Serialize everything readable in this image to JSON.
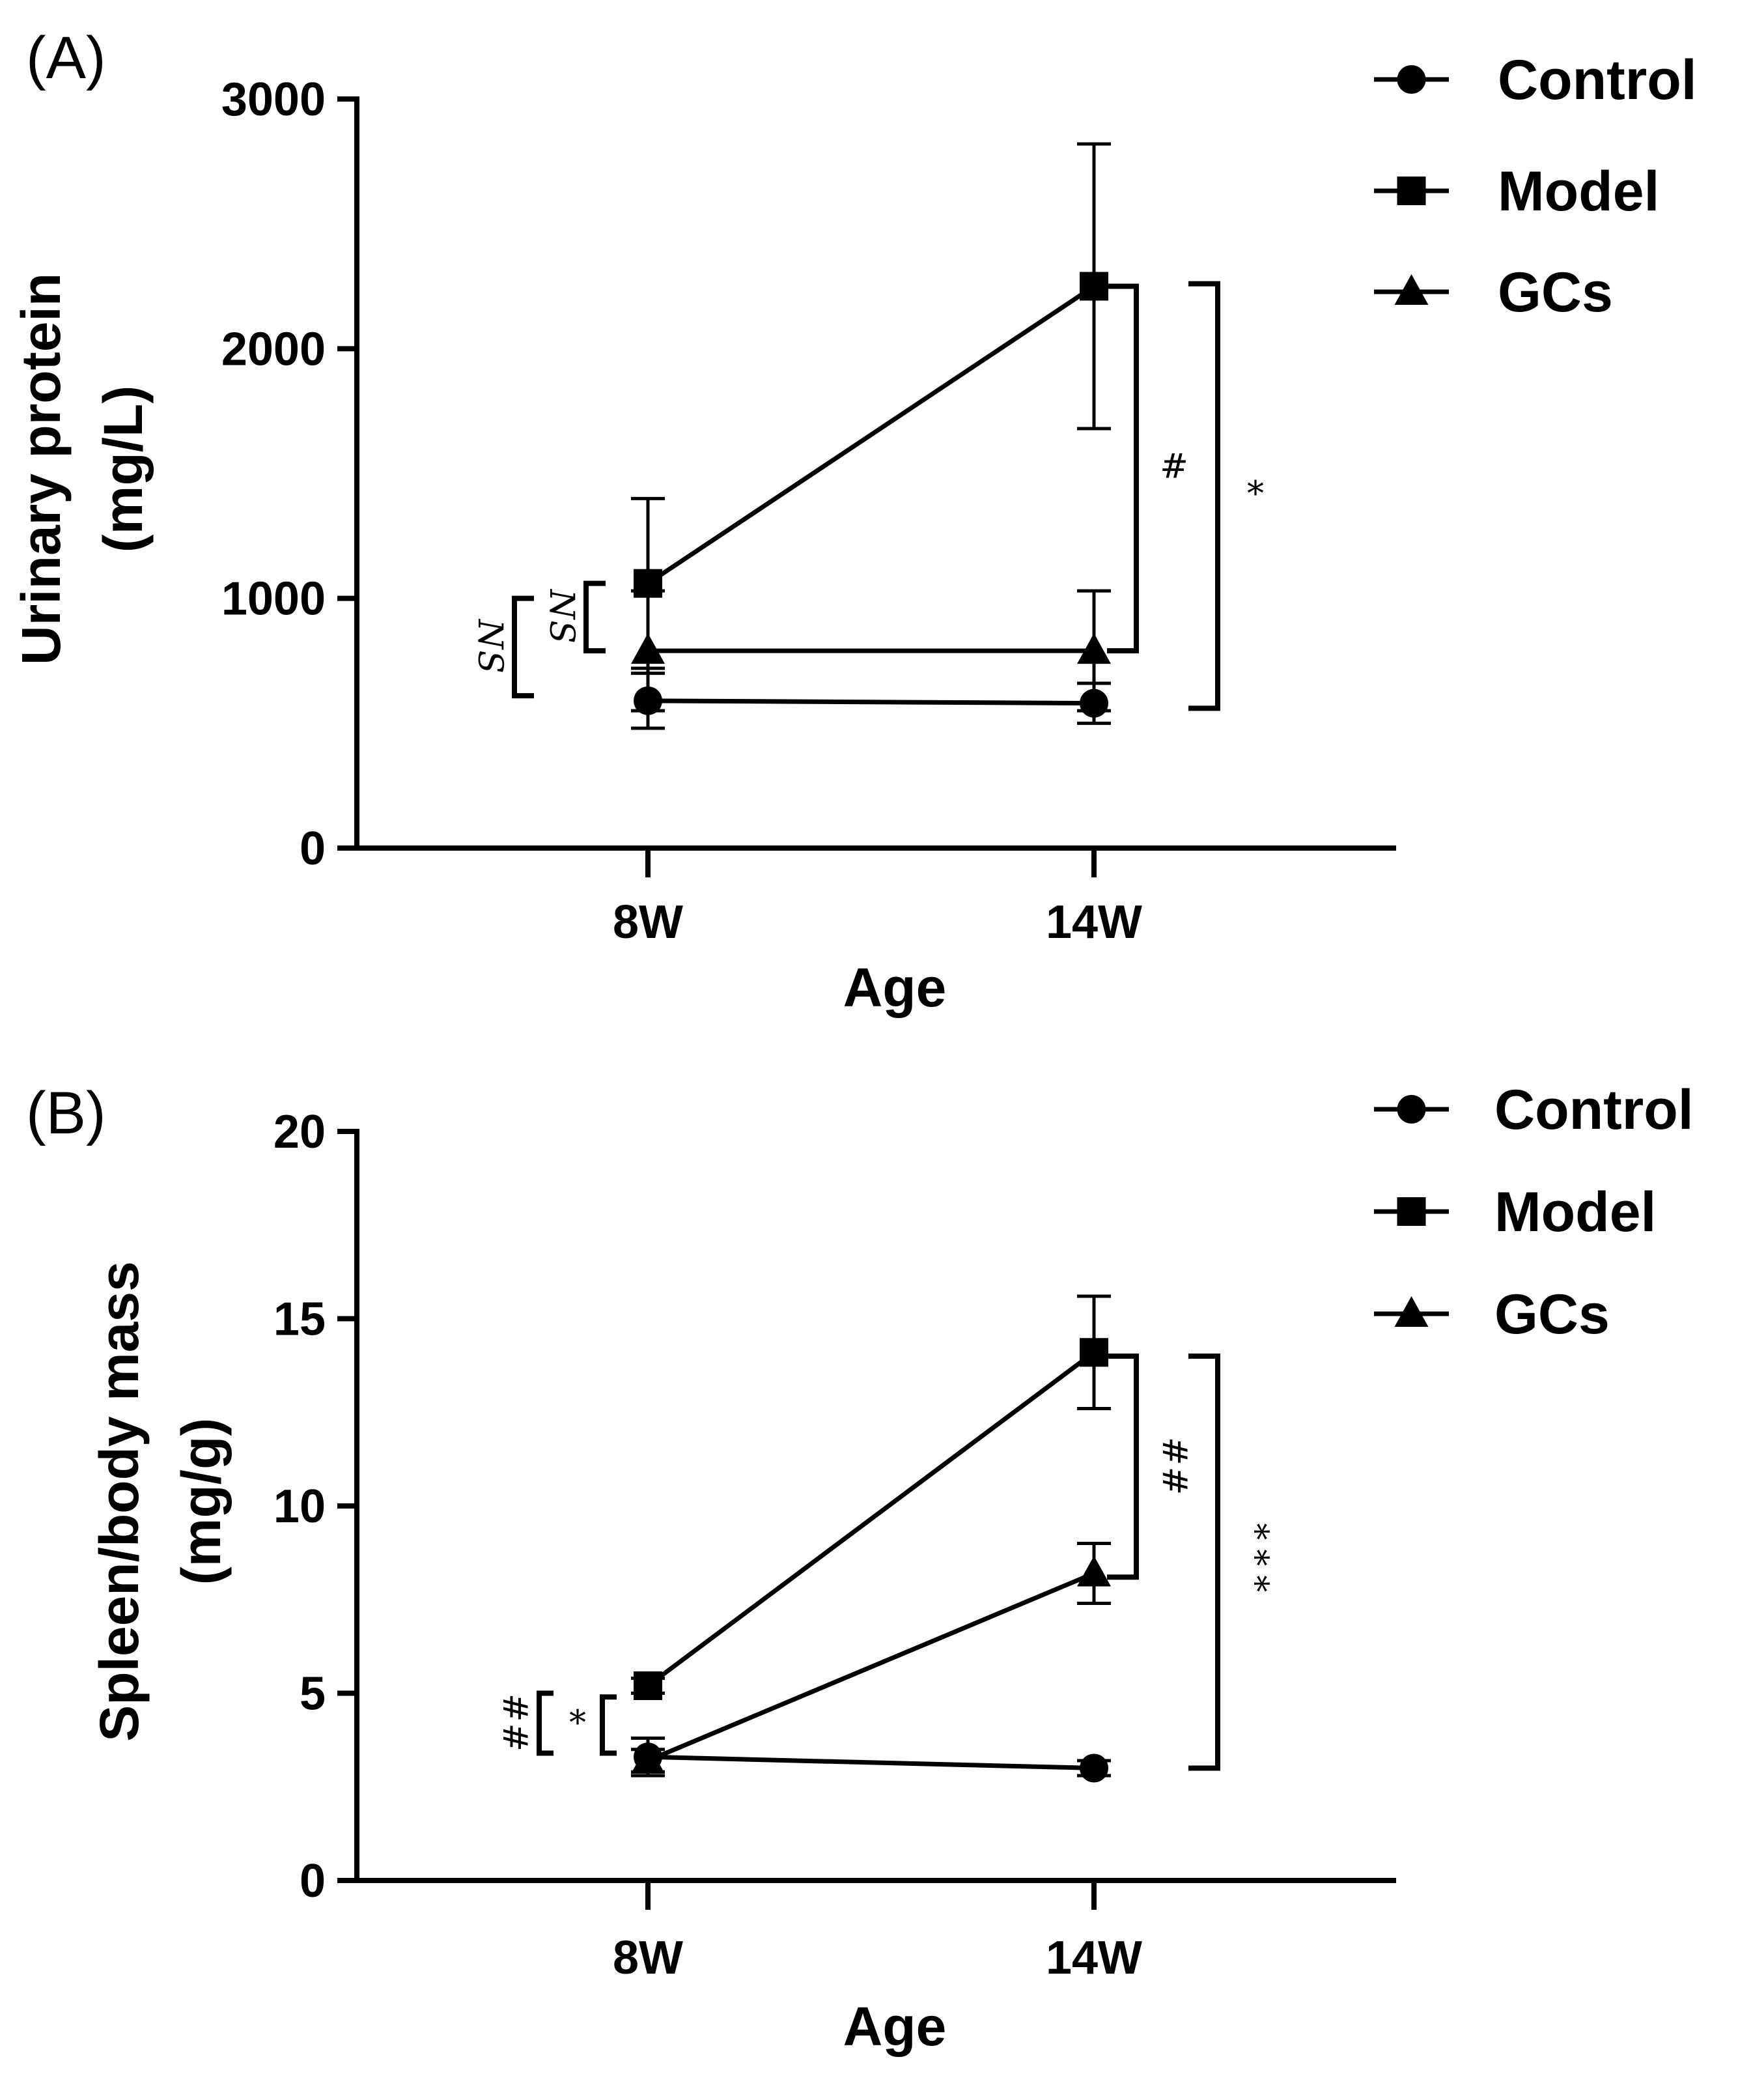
{
  "chart_data": [
    {
      "type": "line",
      "panel_label": "(A)",
      "xlabel": "Age",
      "ylabel_line1": "Urinary protein",
      "ylabel_line2": "(mg/L)",
      "categories": [
        "8W",
        "14W"
      ],
      "ylim": [
        0,
        3000
      ],
      "yticks": [
        0,
        1000,
        2000,
        3000
      ],
      "grid": false,
      "legend_position": "top-right",
      "series": [
        {
          "name": "Control",
          "marker": "circle",
          "values": [
            590,
            580
          ],
          "errors": [
            110,
            80
          ]
        },
        {
          "name": "Model",
          "marker": "square",
          "values": [
            1060,
            2250
          ],
          "errors": [
            340,
            570
          ]
        },
        {
          "name": "GCs",
          "marker": "triangle",
          "values": [
            790,
            790
          ],
          "errors": [
            240,
            240
          ]
        }
      ],
      "annotations": [
        {
          "text": "NS",
          "at": "8W",
          "from": 1060,
          "to": 790,
          "offset": 1,
          "rotated": true
        },
        {
          "text": "NS",
          "at": "8W",
          "from": 1000,
          "to": 610,
          "offset": 2,
          "rotated": true
        },
        {
          "text": "#",
          "at": "14W",
          "from": 2250,
          "to": 790,
          "offset": 1,
          "rotated": false
        },
        {
          "text": "*",
          "at": "14W",
          "from": 2260,
          "to": 560,
          "offset": 2,
          "rotated": false
        }
      ]
    },
    {
      "type": "line",
      "panel_label": "(B)",
      "xlabel": "Age",
      "ylabel_line1": "Spleen/body mass",
      "ylabel_line2": "(mg/g)",
      "categories": [
        "8W",
        "14W"
      ],
      "ylim": [
        0,
        20
      ],
      "yticks": [
        0,
        5,
        10,
        15,
        20
      ],
      "grid": false,
      "legend_position": "top-right",
      "series": [
        {
          "name": "Control",
          "marker": "circle",
          "values": [
            3.3,
            3.0
          ],
          "errors": [
            0.5,
            0.2
          ]
        },
        {
          "name": "Model",
          "marker": "square",
          "values": [
            5.2,
            14.1
          ],
          "errors": [
            0.2,
            1.5
          ]
        },
        {
          "name": "GCs",
          "marker": "triangle",
          "values": [
            3.2,
            8.2
          ],
          "errors": [
            0.3,
            0.8
          ]
        }
      ],
      "annotations": [
        {
          "text": "##",
          "at": "8W",
          "from": 5.0,
          "to": 3.4,
          "offset": 2,
          "rotated": true
        },
        {
          "text": "*",
          "at": "8W",
          "from": 4.9,
          "to": 3.4,
          "offset": 1,
          "rotated": false
        },
        {
          "text": "##",
          "at": "14W",
          "from": 14.0,
          "to": 8.1,
          "offset": 1,
          "rotated": true
        },
        {
          "text": "***",
          "at": "14W",
          "from": 14.0,
          "to": 3.0,
          "offset": 2,
          "rotated": true
        }
      ]
    }
  ]
}
